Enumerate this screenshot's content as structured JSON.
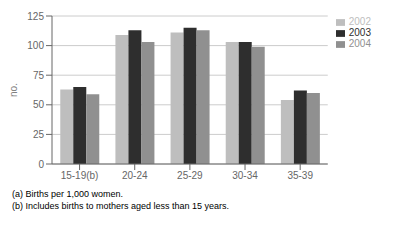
{
  "chart_data": {
    "type": "bar",
    "categories": [
      "15-19(b)",
      "20-24",
      "25-29",
      "30-34",
      "35-39"
    ],
    "series": [
      {
        "name": "2002",
        "color": "#bebebe",
        "values": [
          63,
          109,
          111,
          103,
          54
        ]
      },
      {
        "name": "2003",
        "color": "#2e2e2e",
        "values": [
          65,
          113,
          115,
          103,
          62
        ]
      },
      {
        "name": "2004",
        "color": "#909090",
        "values": [
          59,
          103,
          113,
          99,
          60
        ]
      }
    ],
    "ylabel": "no.",
    "ylim": [
      0,
      125
    ],
    "yticks": [
      0,
      25,
      50,
      75,
      100,
      125
    ],
    "grid": true,
    "legend": "upper right",
    "annotations": [
      "(a) Births per 1,000 women.",
      "(b) Includes births to mothers aged less than 15 years."
    ]
  }
}
